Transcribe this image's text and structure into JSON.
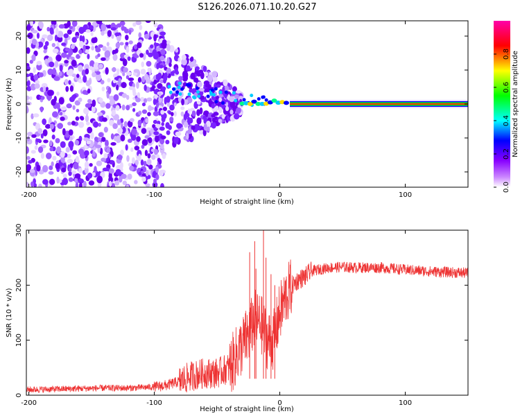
{
  "chart_data": [
    {
      "type": "heatmap",
      "title": "S126.2026.071.10.20.G27",
      "xlabel": "Height of straight line (km)",
      "ylabel": "Frequency (Hz)",
      "xlim": [
        -202,
        150
      ],
      "ylim": [
        -24.5,
        24.5
      ],
      "xticks": [
        "-200",
        "-100",
        "0",
        "100"
      ],
      "xtick_values": [
        -200,
        -100,
        0,
        100
      ],
      "yticks": [
        "20",
        "10",
        "0",
        "-10",
        "-20"
      ],
      "ytick_values": [
        20,
        10,
        0,
        -10,
        -20
      ],
      "colorbar": {
        "label": "Normalized spectral amplitude",
        "range": [
          0,
          1
        ],
        "ticks": [
          "0.0",
          "0.2",
          "0.4",
          "0.6",
          "0.8"
        ],
        "tick_values": [
          0.0,
          0.2,
          0.4,
          0.6,
          0.8
        ],
        "colors": [
          "#ffffff",
          "#cc88ff",
          "#8800ff",
          "#0000ff",
          "#00ffff",
          "#00ff00",
          "#ffff00",
          "#ff0000",
          "#ff00aa"
        ]
      },
      "features": {
        "noise_region_x": [
          -202,
          -100
        ],
        "transition_region_x": [
          -100,
          -30
        ],
        "line_start_x": 8,
        "line_frequency_hz": 0
      }
    },
    {
      "type": "line",
      "title": "",
      "xlabel": "Height of straight line (km)",
      "ylabel": "SNR (10 * v/v)",
      "xlim": [
        -202,
        150
      ],
      "ylim": [
        0,
        300
      ],
      "xticks": [
        "-200",
        "-100",
        "0",
        "100"
      ],
      "xtick_values": [
        -200,
        -100,
        0,
        100
      ],
      "yticks": [
        "300",
        "200",
        "100",
        "0"
      ],
      "ytick_values": [
        300,
        200,
        100,
        0
      ],
      "series": [
        {
          "name": "SNR",
          "color": "#ee3333",
          "x": [
            -202,
            -180,
            -160,
            -140,
            -120,
            -100,
            -90,
            -80,
            -70,
            -60,
            -50,
            -40,
            -35,
            -30,
            -25,
            -20,
            -15,
            -10,
            -5,
            0,
            5,
            10,
            15,
            20,
            25,
            30,
            40,
            50,
            60,
            80,
            100,
            120,
            150
          ],
          "y": [
            10,
            11,
            12,
            13,
            13,
            15,
            18,
            25,
            35,
            40,
            40,
            50,
            70,
            90,
            110,
            140,
            130,
            100,
            100,
            150,
            180,
            200,
            210,
            215,
            225,
            228,
            232,
            233,
            232,
            232,
            228,
            225,
            222
          ]
        }
      ],
      "spikes": [
        {
          "x": -24,
          "y": 260
        },
        {
          "x": -20,
          "y": 280
        },
        {
          "x": -19,
          "y": 230
        },
        {
          "x": -13,
          "y": 300
        },
        {
          "x": -11,
          "y": 250
        },
        {
          "x": -7,
          "y": 220
        },
        {
          "x": -4,
          "y": 200
        }
      ]
    }
  ]
}
